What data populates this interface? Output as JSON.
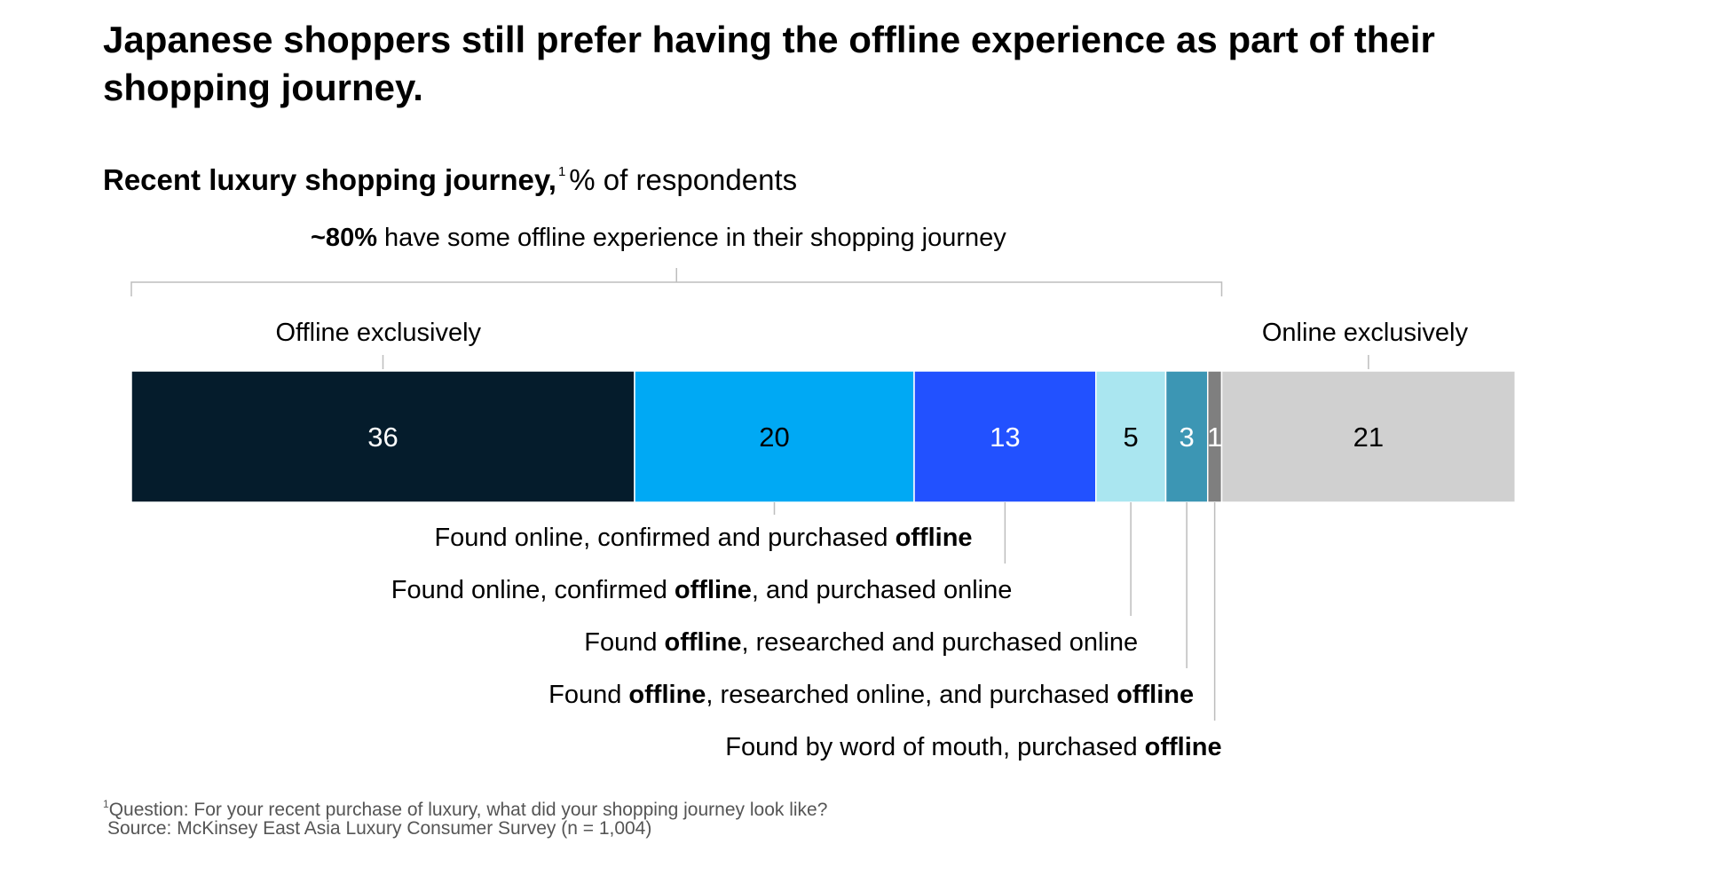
{
  "title": "Japanese shoppers still prefer having the offline experience as part of their shopping journey.",
  "subtitle": {
    "bold": "Recent luxury shopping journey,",
    "footnote_mark": "1",
    "rest": "% of respondents"
  },
  "bracket": {
    "bold": "~80%",
    "rest": " have some offline experience in their shopping journey"
  },
  "groups": {
    "offline_exclusively": "Offline exclusively",
    "online_exclusively": "Online exclusively"
  },
  "journey_labels": [
    {
      "pre": "Found online, confirmed and purchased ",
      "bold": "offline",
      "post": ""
    },
    {
      "pre": "Found online, confirmed ",
      "bold": "offline",
      "post": ", and purchased online"
    },
    {
      "pre": "Found ",
      "bold": "offline",
      "post": ", researched and purchased online"
    },
    {
      "pre": "Found ",
      "bold": "offline",
      "post": ", researched online, and purchased ",
      "bold2": "offline"
    },
    {
      "pre": "Found by word of mouth, purchased ",
      "bold": "offline",
      "post": ""
    }
  ],
  "footnote": {
    "mark": "1",
    "text": "Question: For your recent purchase of luxury, what did your shopping journey look like?"
  },
  "source": "Source: McKinsey East Asia Luxury Consumer Survey (n = 1,004)",
  "chart_data": {
    "type": "bar",
    "orientation": "horizontal-stacked-100",
    "unit": "% of respondents",
    "categories": [
      "Offline exclusively",
      "Found online, confirmed and purchased offline",
      "Found online, confirmed offline, and purchased online",
      "Found offline, researched and purchased online",
      "Found offline, researched online, and purchased offline",
      "Found by word of mouth, purchased offline",
      "Online exclusively"
    ],
    "values": [
      36,
      20,
      13,
      5,
      3,
      1,
      21
    ],
    "data_labels": [
      "36",
      "20",
      "13",
      "5",
      "3",
      "1",
      "21"
    ],
    "colors": [
      "#051c2c",
      "#00a9f4",
      "#2251ff",
      "#aae6f0",
      "#3c96b4",
      "#7f7f7f",
      "#d0d0d0"
    ],
    "label_colors": [
      "#ffffff",
      "#000000",
      "#ffffff",
      "#000000",
      "#ffffff",
      "#ffffff",
      "#000000"
    ],
    "bracket_span": [
      "Offline exclusively",
      "Found by word of mouth, purchased offline"
    ],
    "bracket_value": "~80%",
    "grid": false,
    "legend": "none"
  }
}
